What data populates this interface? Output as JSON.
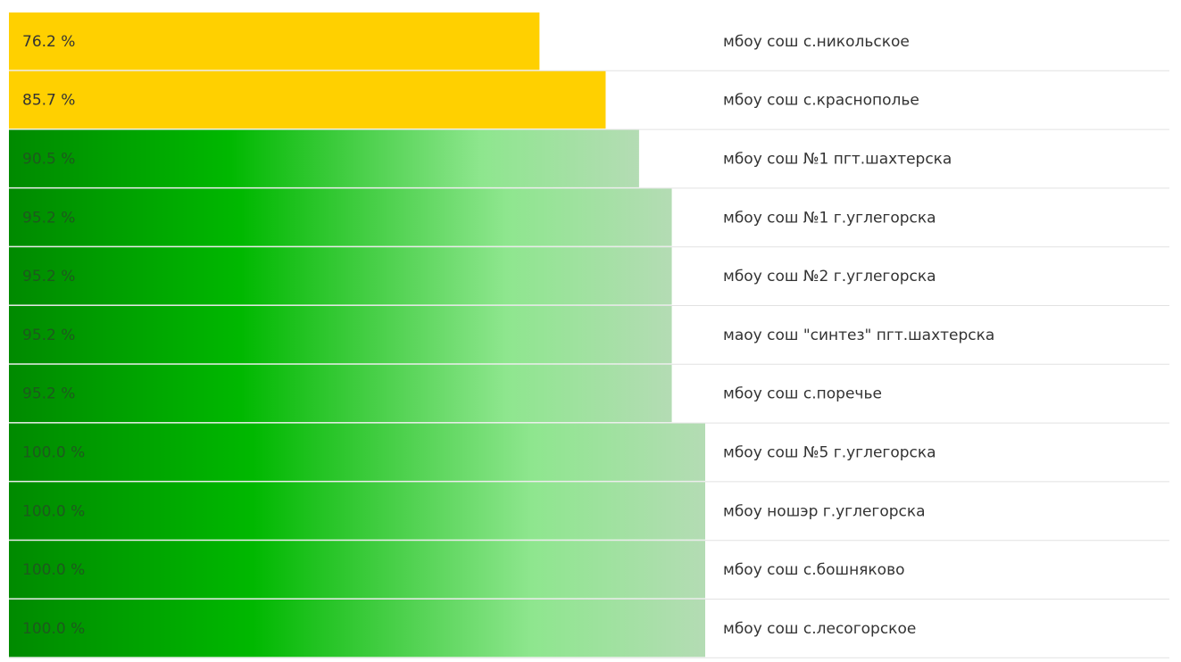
{
  "chart_data": {
    "type": "hbar",
    "categories": [
      "мбоу сош с.никольское",
      "мбоу сош с.краснополье",
      "мбоу сош №1 пгт.шахтерска",
      "мбоу сош №1 г.углегорска",
      "мбоу сош №2 г.углегорска",
      "маоу сош \"синтез\" пгт.шахтерска",
      "мбоу сош с.поречье",
      "мбоу сош №5 г.углегорска",
      "мбоу ношэр г.углегорска",
      "мбоу сош с.бошняково",
      "мбоу сош с.лесогорское"
    ],
    "values": [
      76.2,
      85.7,
      90.5,
      95.2,
      95.2,
      95.2,
      95.2,
      100.0,
      100.0,
      100.0,
      100.0
    ],
    "value_labels": [
      "76.2 %",
      "85.7 %",
      "90.5 %",
      "95.2 %",
      "95.2 %",
      "95.2 %",
      "95.2 %",
      "100.0 %",
      "100.0 %",
      "100.0 %",
      "100.0 %"
    ],
    "colors": [
      "#ffd000",
      "#ffd000",
      [
        "#008a00",
        "#00b800",
        "#8ee68e",
        "#b4dcb4"
      ],
      [
        "#008a00",
        "#00b800",
        "#8ee68e",
        "#b4dcb4"
      ],
      [
        "#008a00",
        "#00b800",
        "#8ee68e",
        "#b4dcb4"
      ],
      [
        "#008a00",
        "#00b800",
        "#8ee68e",
        "#b4dcb4"
      ],
      [
        "#008a00",
        "#00b800",
        "#8ee68e",
        "#b4dcb4"
      ],
      [
        "#008a00",
        "#00b800",
        "#8ee68e",
        "#b4dcb4"
      ],
      [
        "#008a00",
        "#00b800",
        "#8ee68e",
        "#b4dcb4"
      ],
      [
        "#008a00",
        "#00b800",
        "#8ee68e",
        "#b4dcb4"
      ],
      [
        "#008a00",
        "#00b800",
        "#8ee68e",
        "#b4dcb4"
      ]
    ],
    "xlim": [
      0,
      100
    ]
  }
}
